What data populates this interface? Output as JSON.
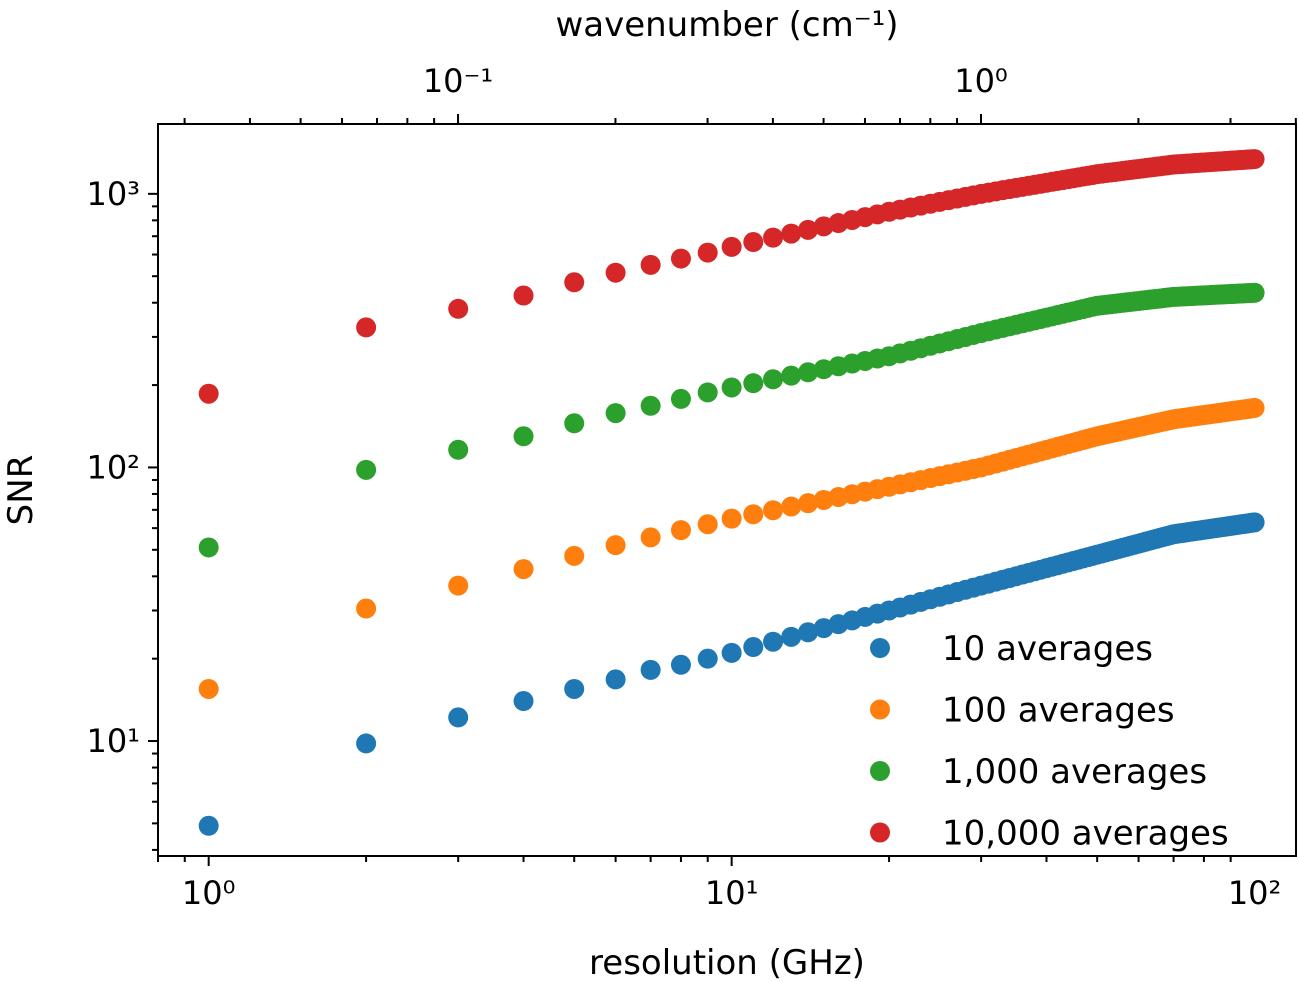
{
  "chart_data": {
    "type": "scatter",
    "title": "",
    "xlabel": "resolution (GHz)",
    "ylabel": "SNR",
    "x2label": "wavenumber (cm⁻¹)",
    "xscale": "log",
    "yscale": "log",
    "xlim": [
      0.8,
      120
    ],
    "ylim": [
      3.8,
      1800
    ],
    "x2_conversion": "wavenumber (cm^-1) = resolution (GHz) / 29.9792458",
    "xticks": [
      1,
      10,
      100
    ],
    "xtick_labels": [
      "10⁰",
      "10¹",
      "10²"
    ],
    "yticks": [
      10,
      100,
      1000
    ],
    "ytick_labels": [
      "10¹",
      "10²",
      "10³"
    ],
    "x2ticks": [
      0.1,
      1
    ],
    "x2tick_labels": [
      "10⁻¹",
      "10⁰"
    ],
    "grid": false,
    "legend_position": "bottom-right",
    "x_points": "integers 1 through 100 (GHz)",
    "series": [
      {
        "name": "10 averages",
        "color": "#1f77b4",
        "anchors": [
          [
            1,
            4.9
          ],
          [
            2,
            9.8
          ],
          [
            3,
            12.2
          ],
          [
            4,
            14.0
          ],
          [
            5,
            15.5
          ],
          [
            6,
            16.8
          ],
          [
            7,
            18.2
          ],
          [
            8,
            19.0
          ],
          [
            9,
            20.0
          ],
          [
            10,
            21.0
          ],
          [
            20,
            30.0
          ],
          [
            30,
            37.0
          ],
          [
            50,
            48.0
          ],
          [
            70,
            57.0
          ],
          [
            100,
            63.0
          ]
        ]
      },
      {
        "name": "100 averages",
        "color": "#ff7f0e",
        "anchors": [
          [
            1,
            15.5
          ],
          [
            2,
            30.5
          ],
          [
            3,
            37.0
          ],
          [
            4,
            42.5
          ],
          [
            5,
            47.5
          ],
          [
            6,
            52.0
          ],
          [
            7,
            55.5
          ],
          [
            8,
            59.0
          ],
          [
            9,
            62.0
          ],
          [
            10,
            65.0
          ],
          [
            20,
            85.0
          ],
          [
            30,
            100.0
          ],
          [
            50,
            130.0
          ],
          [
            70,
            150.0
          ],
          [
            100,
            165.0
          ]
        ]
      },
      {
        "name": "1,000 averages",
        "color": "#2ca02c",
        "anchors": [
          [
            1,
            51.0
          ],
          [
            2,
            98.0
          ],
          [
            3,
            116.0
          ],
          [
            4,
            130.0
          ],
          [
            5,
            145.0
          ],
          [
            6,
            158.0
          ],
          [
            7,
            168.0
          ],
          [
            8,
            178.0
          ],
          [
            9,
            188.0
          ],
          [
            10,
            196.0
          ],
          [
            20,
            255.0
          ],
          [
            30,
            310.0
          ],
          [
            50,
            390.0
          ],
          [
            70,
            420.0
          ],
          [
            100,
            435.0
          ]
        ]
      },
      {
        "name": "10,000 averages",
        "color": "#d62728",
        "anchors": [
          [
            1,
            186.0
          ],
          [
            2,
            325.0
          ],
          [
            3,
            380.0
          ],
          [
            4,
            425.0
          ],
          [
            5,
            475.0
          ],
          [
            6,
            515.0
          ],
          [
            7,
            550.0
          ],
          [
            8,
            580.0
          ],
          [
            9,
            610.0
          ],
          [
            10,
            640.0
          ],
          [
            20,
            860.0
          ],
          [
            30,
            1000.0
          ],
          [
            50,
            1180.0
          ],
          [
            70,
            1280.0
          ],
          [
            100,
            1340.0
          ]
        ]
      }
    ]
  }
}
